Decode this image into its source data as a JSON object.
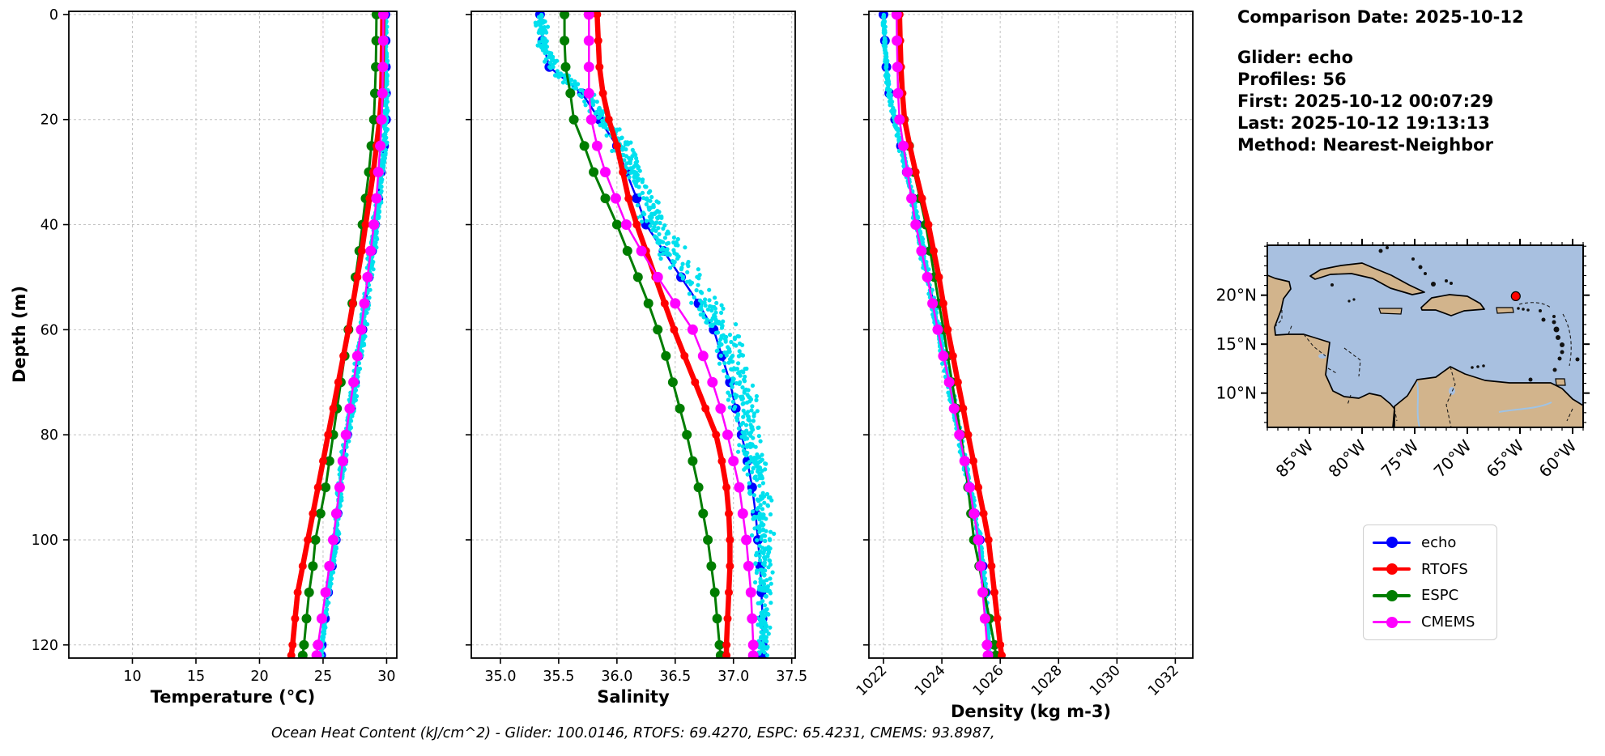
{
  "info_panel": {
    "comparison_date": "Comparison Date: 2025-10-12",
    "glider": "Glider: echo",
    "profiles": "Profiles: 56",
    "first": "First: 2025-10-12 00:07:29",
    "last": "Last: 2025-10-12 19:13:13",
    "method": "Method: Nearest-Neighbor"
  },
  "footer": {
    "ohc_text": "Ocean Heat Content (kJ/cm^2) - Glider: 100.0146,  RTOFS: 69.4270,  ESPC: 65.4231,  CMEMS: 93.8987,"
  },
  "legend": {
    "items": [
      {
        "label": "echo",
        "color": "#0000ff"
      },
      {
        "label": "RTOFS",
        "color": "#ff0000"
      },
      {
        "label": "ESPC",
        "color": "#007d00"
      },
      {
        "label": "CMEMS",
        "color": "#ff00ff"
      }
    ]
  },
  "colors": {
    "echo": "#0000ff",
    "rtofs": "#ff0000",
    "espc": "#007d00",
    "cmems": "#ff00ff",
    "glider_scatter": "#00e0ee",
    "map_ocean": "#a8c0e0",
    "map_land": "#d2b48c",
    "glider_marker": "#ff0000",
    "grid": "#c3c3c3"
  },
  "chart_data": [
    {
      "id": "temperature",
      "type": "line",
      "xlabel": "Temperature (°C)",
      "ylabel": "Depth (m)",
      "xlim": [
        5.0,
        30.8
      ],
      "ylim": [
        -0.6,
        122.5
      ],
      "xticks": [
        10,
        15,
        20,
        25,
        30
      ],
      "xtick_labels": [
        "10",
        "15",
        "20",
        "25",
        "30"
      ],
      "yticks": [
        0,
        20,
        40,
        60,
        80,
        100,
        120
      ],
      "grid": true,
      "depths": [
        0,
        5,
        10,
        15,
        20,
        25,
        30,
        35,
        40,
        45,
        50,
        55,
        60,
        65,
        70,
        75,
        80,
        85,
        90,
        95,
        100,
        105,
        110,
        115,
        120,
        122
      ],
      "series": [
        {
          "name": "echo",
          "color": "#0000ff",
          "line_width": 2.5,
          "marker_radius": 6,
          "values": [
            29.9,
            29.92,
            29.94,
            29.95,
            29.95,
            29.8,
            29.55,
            29.35,
            29.1,
            28.85,
            28.6,
            28.35,
            28.1,
            27.8,
            27.5,
            27.2,
            26.9,
            26.6,
            26.3,
            26.15,
            26.0,
            25.7,
            25.4,
            25.15,
            24.9,
            24.85
          ]
        },
        {
          "name": "RTOFS",
          "color": "#ff0000",
          "line_width": 6.5,
          "marker_radius": 5,
          "values": [
            29.7,
            29.68,
            29.65,
            29.6,
            29.45,
            29.2,
            28.95,
            28.65,
            28.35,
            28.05,
            27.7,
            27.35,
            27.0,
            26.6,
            26.2,
            25.8,
            25.4,
            25.0,
            24.6,
            24.2,
            23.8,
            23.4,
            23.0,
            22.8,
            22.6,
            22.5
          ]
        },
        {
          "name": "ESPC",
          "color": "#007d00",
          "line_width": 3,
          "marker_radius": 6,
          "values": [
            29.2,
            29.18,
            29.15,
            29.08,
            29.0,
            28.8,
            28.6,
            28.35,
            28.1,
            27.85,
            27.55,
            27.3,
            27.0,
            26.7,
            26.4,
            26.1,
            25.8,
            25.5,
            25.2,
            24.8,
            24.4,
            24.2,
            23.9,
            23.7,
            23.5,
            23.4
          ]
        },
        {
          "name": "CMEMS",
          "color": "#ff00ff",
          "line_width": 2.5,
          "marker_radius": 6.5,
          "values": [
            29.75,
            29.73,
            29.7,
            29.67,
            29.6,
            29.5,
            29.35,
            29.2,
            29.0,
            28.75,
            28.5,
            28.25,
            28.0,
            27.7,
            27.4,
            27.1,
            26.8,
            26.55,
            26.3,
            26.05,
            25.8,
            25.5,
            25.2,
            24.9,
            24.6,
            24.5
          ]
        }
      ],
      "scatter": {
        "name": "glider raw profiles",
        "color": "#00e0ee",
        "around": "echo",
        "amplitude": 0.22,
        "bias": 0.03,
        "count": 850
      }
    },
    {
      "id": "salinity",
      "type": "line",
      "xlabel": "Salinity",
      "xlim": [
        34.75,
        37.53
      ],
      "ylim": [
        -0.6,
        122.5
      ],
      "xticks": [
        35.0,
        35.5,
        36.0,
        36.5,
        37.0,
        37.5
      ],
      "xtick_labels": [
        "35.0",
        "35.5",
        "36.0",
        "36.5",
        "37.0",
        "37.5"
      ],
      "yticks": [
        0,
        20,
        40,
        60,
        80,
        100,
        120
      ],
      "grid": true,
      "depths": [
        0,
        5,
        10,
        15,
        20,
        25,
        30,
        35,
        40,
        45,
        50,
        55,
        60,
        65,
        70,
        75,
        80,
        85,
        90,
        95,
        100,
        105,
        110,
        115,
        120,
        122
      ],
      "series": [
        {
          "name": "echo",
          "color": "#0000ff",
          "line_width": 2.5,
          "marker_radius": 6,
          "values": [
            35.34,
            35.36,
            35.42,
            35.7,
            35.85,
            36.0,
            36.08,
            36.17,
            36.25,
            36.4,
            36.55,
            36.7,
            36.83,
            36.9,
            36.97,
            37.02,
            37.07,
            37.12,
            37.16,
            37.19,
            37.21,
            37.23,
            37.24,
            37.25,
            37.25,
            37.25
          ]
        },
        {
          "name": "RTOFS",
          "color": "#ff0000",
          "line_width": 6.5,
          "marker_radius": 5,
          "values": [
            35.83,
            35.84,
            35.85,
            35.88,
            35.93,
            36.0,
            36.05,
            36.1,
            36.17,
            36.25,
            36.33,
            36.41,
            36.49,
            36.58,
            36.67,
            36.76,
            36.85,
            36.9,
            36.94,
            36.96,
            36.97,
            36.97,
            36.96,
            36.95,
            36.94,
            36.94
          ]
        },
        {
          "name": "ESPC",
          "color": "#007d00",
          "line_width": 3,
          "marker_radius": 6,
          "values": [
            35.55,
            35.55,
            35.56,
            35.6,
            35.63,
            35.72,
            35.8,
            35.9,
            36.0,
            36.09,
            36.18,
            36.27,
            36.35,
            36.42,
            36.48,
            36.54,
            36.6,
            36.65,
            36.7,
            36.74,
            36.78,
            36.81,
            36.84,
            36.86,
            36.88,
            36.89
          ]
        },
        {
          "name": "CMEMS",
          "color": "#ff00ff",
          "line_width": 2.5,
          "marker_radius": 6.5,
          "values": [
            35.76,
            35.76,
            35.76,
            35.76,
            35.78,
            35.83,
            35.9,
            35.99,
            36.08,
            36.21,
            36.35,
            36.5,
            36.65,
            36.74,
            36.82,
            36.89,
            36.95,
            37.0,
            37.05,
            37.08,
            37.11,
            37.13,
            37.15,
            37.16,
            37.17,
            37.17
          ]
        }
      ],
      "scatter": {
        "name": "glider raw profiles",
        "color": "#00e0ee",
        "around": "echo",
        "amplitude": 0.1,
        "bias": 0.08,
        "count": 850
      }
    },
    {
      "id": "density",
      "type": "line",
      "xlabel": "Density (kg m-3)",
      "xlim": [
        1021.5,
        1032.6
      ],
      "ylim": [
        -0.6,
        122.5
      ],
      "xticks": [
        1022,
        1024,
        1026,
        1028,
        1030,
        1032
      ],
      "xtick_labels": [
        "1022",
        "1024",
        "1026",
        "1028",
        "1030",
        "1032"
      ],
      "yticks": [
        0,
        20,
        40,
        60,
        80,
        100,
        120
      ],
      "grid": true,
      "depths": [
        0,
        5,
        10,
        15,
        20,
        25,
        30,
        35,
        40,
        45,
        50,
        55,
        60,
        65,
        70,
        75,
        80,
        85,
        90,
        95,
        100,
        105,
        110,
        115,
        120,
        122
      ],
      "series": [
        {
          "name": "echo",
          "color": "#0000ff",
          "line_width": 2.5,
          "marker_radius": 6,
          "values": [
            1022.0,
            1022.05,
            1022.1,
            1022.2,
            1022.4,
            1022.6,
            1022.8,
            1023.0,
            1023.17,
            1023.35,
            1023.53,
            1023.72,
            1023.9,
            1024.08,
            1024.25,
            1024.45,
            1024.62,
            1024.8,
            1024.97,
            1025.13,
            1025.3,
            1025.4,
            1025.5,
            1025.55,
            1025.6,
            1025.62
          ]
        },
        {
          "name": "RTOFS",
          "color": "#ff0000",
          "line_width": 6.5,
          "marker_radius": 5,
          "values": [
            1022.55,
            1022.57,
            1022.6,
            1022.65,
            1022.72,
            1022.9,
            1023.1,
            1023.32,
            1023.54,
            1023.72,
            1023.9,
            1024.05,
            1024.2,
            1024.38,
            1024.55,
            1024.73,
            1024.9,
            1025.08,
            1025.25,
            1025.43,
            1025.6,
            1025.7,
            1025.8,
            1025.9,
            1026.0,
            1026.05
          ]
        },
        {
          "name": "ESPC",
          "color": "#007d00",
          "line_width": 3,
          "marker_radius": 6,
          "values": [
            1022.5,
            1022.52,
            1022.55,
            1022.6,
            1022.7,
            1022.88,
            1023.05,
            1023.25,
            1023.45,
            1023.6,
            1023.75,
            1023.9,
            1024.06,
            1024.2,
            1024.35,
            1024.5,
            1024.65,
            1024.78,
            1024.9,
            1025.0,
            1025.1,
            1025.28,
            1025.45,
            1025.63,
            1025.8,
            1025.85
          ]
        },
        {
          "name": "CMEMS",
          "color": "#ff00ff",
          "line_width": 2.5,
          "marker_radius": 6.5,
          "values": [
            1022.45,
            1022.46,
            1022.48,
            1022.5,
            1022.55,
            1022.68,
            1022.82,
            1022.96,
            1023.1,
            1023.3,
            1023.5,
            1023.68,
            1023.86,
            1024.05,
            1024.25,
            1024.42,
            1024.6,
            1024.78,
            1024.95,
            1025.1,
            1025.25,
            1025.33,
            1025.4,
            1025.48,
            1025.55,
            1025.58
          ]
        }
      ],
      "scatter": {
        "name": "glider raw profiles",
        "color": "#00e0ee",
        "around": "echo",
        "amplitude": 0.08,
        "bias": -0.02,
        "count": 850
      }
    },
    {
      "id": "location-map",
      "type": "map",
      "extent": {
        "lon": [
          -89,
          -59
        ],
        "lat": [
          6.5,
          25.1
        ]
      },
      "lat_ticks": [
        {
          "value": 20,
          "label": "20°N"
        },
        {
          "value": 15,
          "label": "15°N"
        },
        {
          "value": 10,
          "label": "10°N"
        }
      ],
      "lon_ticks": [
        {
          "value": -85,
          "label": "85°W"
        },
        {
          "value": -80,
          "label": "80°W"
        },
        {
          "value": -75,
          "label": "75°W"
        },
        {
          "value": -70,
          "label": "70°W"
        },
        {
          "value": -65,
          "label": "65°W"
        },
        {
          "value": -60,
          "label": "60°W"
        }
      ],
      "marker": {
        "lon": -65.4,
        "lat": 19.9,
        "color": "#ff0000"
      }
    }
  ]
}
